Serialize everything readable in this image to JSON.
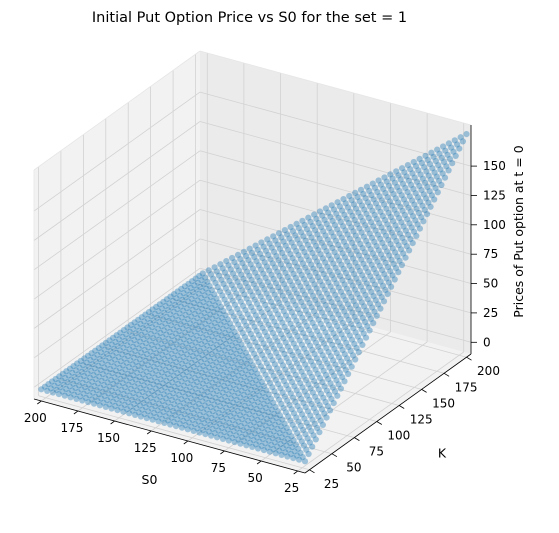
{
  "chart_data": {
    "type": "scatter",
    "projection": "3d",
    "title": "Initial Put Option Price vs S0 for the set = 1",
    "xlabel": "S0",
    "ylabel": "K",
    "zlabel": "Prices of Put option at t = 0",
    "xlim": [
      20,
      205
    ],
    "ylim": [
      20,
      205
    ],
    "zlim": [
      -10,
      185
    ],
    "xticks": [
      25,
      50,
      75,
      100,
      125,
      150,
      175,
      200
    ],
    "yticks": [
      25,
      50,
      75,
      100,
      125,
      150,
      175,
      200
    ],
    "zticks": [
      0,
      25,
      50,
      75,
      100,
      125,
      150
    ],
    "grid": true,
    "s0_range": [
      20,
      200
    ],
    "k_range": [
      20,
      200
    ],
    "grid_step": 4,
    "approx_surface": "price ≈ max(K − S0, 0)",
    "marker_color": "#1f77b4",
    "marker_alpha": 0.4
  }
}
